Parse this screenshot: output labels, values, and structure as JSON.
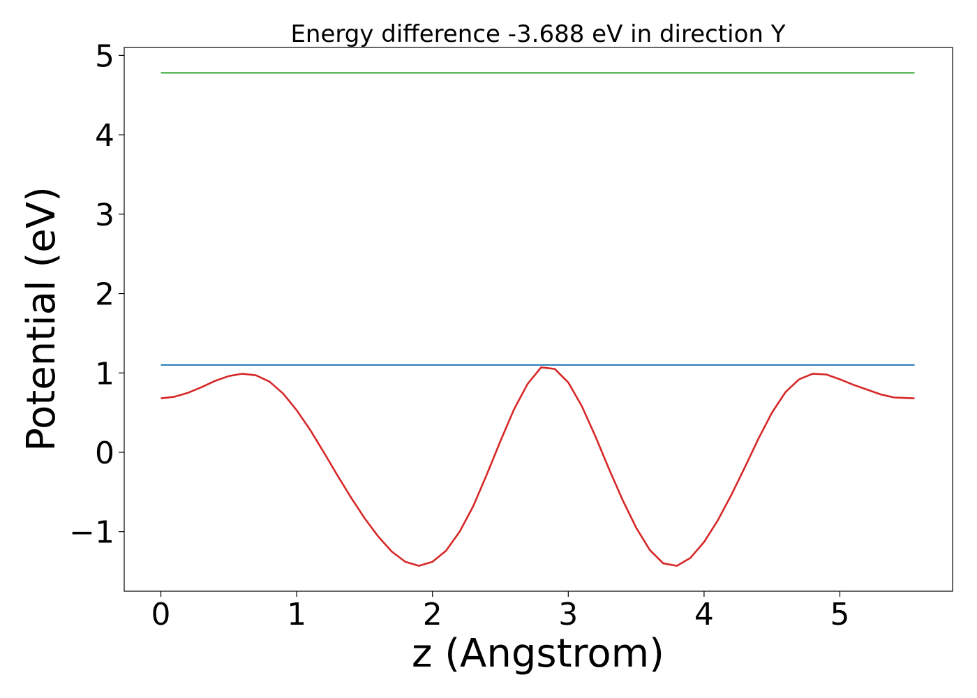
{
  "chart_data": {
    "type": "line",
    "title": "Energy difference -3.688 eV in direction Y",
    "xlabel": "z (Angstrom)",
    "ylabel": "Potential (eV)",
    "xlim": [
      -0.27,
      5.83
    ],
    "ylim": [
      -1.75,
      5.1
    ],
    "xticks": [
      0,
      1,
      2,
      3,
      4,
      5
    ],
    "xtick_labels": [
      "0",
      "1",
      "2",
      "3",
      "4",
      "5"
    ],
    "yticks": [
      -1,
      0,
      1,
      2,
      3,
      4,
      5
    ],
    "ytick_labels": [
      "−1",
      "0",
      "1",
      "2",
      "3",
      "4",
      "5"
    ],
    "grid": false,
    "legend": "none",
    "series": [
      {
        "color": "#2ca02c",
        "x": [
          0,
          5.55
        ],
        "y": [
          4.78,
          4.78
        ]
      },
      {
        "color": "#1f77b4",
        "x": [
          0,
          5.55
        ],
        "y": [
          1.1,
          1.1
        ]
      },
      {
        "color": "#d62728",
        "x": [
          0.0,
          0.1,
          0.2,
          0.3,
          0.4,
          0.5,
          0.6,
          0.7,
          0.8,
          0.9,
          1.0,
          1.1,
          1.2,
          1.3,
          1.4,
          1.5,
          1.6,
          1.7,
          1.8,
          1.9,
          2.0,
          2.1,
          2.2,
          2.3,
          2.4,
          2.5,
          2.6,
          2.7,
          2.8,
          2.9,
          3.0,
          3.1,
          3.2,
          3.3,
          3.4,
          3.5,
          3.6,
          3.7,
          3.8,
          3.9,
          4.0,
          4.1,
          4.2,
          4.3,
          4.4,
          4.5,
          4.6,
          4.7,
          4.8,
          4.9,
          5.0,
          5.1,
          5.2,
          5.3,
          5.4,
          5.55
        ],
        "y": [
          0.68,
          0.7,
          0.75,
          0.82,
          0.9,
          0.96,
          0.99,
          0.97,
          0.89,
          0.74,
          0.53,
          0.28,
          0.0,
          -0.29,
          -0.57,
          -0.83,
          -1.06,
          -1.25,
          -1.38,
          -1.43,
          -1.38,
          -1.24,
          -1.0,
          -0.68,
          -0.28,
          0.14,
          0.54,
          0.86,
          1.07,
          1.05,
          0.88,
          0.58,
          0.2,
          -0.21,
          -0.6,
          -0.95,
          -1.23,
          -1.4,
          -1.43,
          -1.33,
          -1.13,
          -0.86,
          -0.54,
          -0.19,
          0.17,
          0.5,
          0.76,
          0.92,
          0.99,
          0.98,
          0.92,
          0.85,
          0.79,
          0.73,
          0.69,
          0.68
        ]
      }
    ]
  }
}
